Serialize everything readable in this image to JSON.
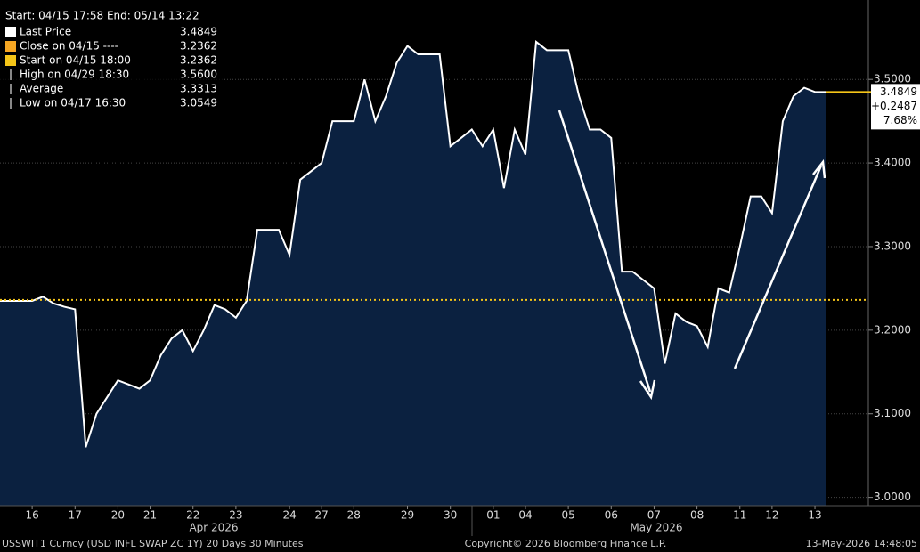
{
  "chart_data": {
    "type": "area",
    "header": "Start: 04/15 17:58 End: 05/14 13:22",
    "legend": [
      {
        "label": "Last Price",
        "value": "3.4849",
        "color": "#ffffff"
      },
      {
        "label": "Close on 04/15 ----",
        "value": "3.2362",
        "color": "#f5a623"
      },
      {
        "label": "Start on 04/15 18:00",
        "value": "3.2362",
        "color": "#f5c518"
      },
      {
        "label": "High on 04/29 18:30",
        "value": "3.5600",
        "color": "#888888"
      },
      {
        "label": "Average",
        "value": "3.3313",
        "color": "#888888"
      },
      {
        "label": "Low on 04/17 16:30",
        "value": "3.0549",
        "color": "#888888"
      }
    ],
    "categories": [
      null,
      null,
      null,
      "16",
      null,
      null,
      null,
      "17",
      null,
      null,
      null,
      "20",
      null,
      null,
      "21",
      null,
      null,
      null,
      "22",
      null,
      null,
      null,
      "23",
      null,
      null,
      null,
      null,
      "24",
      null,
      null,
      "27",
      null,
      null,
      "28",
      null,
      null,
      null,
      null,
      "29",
      null,
      null,
      null,
      "30",
      null,
      null,
      null,
      "01",
      null,
      null,
      "04",
      null,
      null,
      null,
      "05",
      null,
      null,
      null,
      "06",
      null,
      null,
      null,
      "07",
      null,
      null,
      null,
      "08",
      null,
      null,
      null,
      "11",
      null,
      null,
      "12",
      null,
      null,
      null,
      "13",
      null,
      null,
      null,
      null,
      null
    ],
    "series": [
      {
        "name": "Last Price",
        "color": "#ffffff",
        "fill": "#0b2140",
        "values": [
          3.235,
          3.235,
          3.235,
          3.235,
          3.24,
          3.232,
          3.228,
          3.225,
          3.06,
          3.1,
          3.12,
          3.14,
          3.135,
          3.13,
          3.14,
          3.17,
          3.19,
          3.2,
          3.175,
          3.2,
          3.23,
          3.225,
          3.215,
          3.235,
          3.32,
          3.32,
          3.32,
          3.29,
          3.38,
          3.39,
          3.4,
          3.45,
          3.45,
          3.45,
          3.5,
          3.45,
          3.48,
          3.52,
          3.54,
          3.53,
          3.53,
          3.53,
          3.42,
          3.43,
          3.44,
          3.42,
          3.44,
          3.37,
          3.44,
          3.41,
          3.545,
          3.535,
          3.535,
          3.535,
          3.48,
          3.44,
          3.44,
          3.43,
          3.27,
          3.27,
          3.26,
          3.25,
          3.16,
          3.22,
          3.21,
          3.205,
          3.18,
          3.25,
          3.245,
          3.3,
          3.36,
          3.36,
          3.34,
          3.45,
          3.48,
          3.49,
          3.485,
          3.4849,
          null,
          null,
          null,
          null
        ]
      }
    ],
    "reference_line": {
      "value": 3.2362,
      "color": "#f5c518"
    },
    "last_labels": [
      "3.4849",
      "+0.2487",
      "7.68%"
    ],
    "last_value": 3.4849,
    "ylim": [
      2.99,
      3.595
    ],
    "yticks": [
      {
        "value": 3.0,
        "label": "3.0000"
      },
      {
        "value": 3.1,
        "label": "3.1000"
      },
      {
        "value": 3.2,
        "label": "3.2000"
      },
      {
        "value": 3.3,
        "label": "3.3000"
      },
      {
        "value": 3.4,
        "label": "3.4000"
      },
      {
        "value": 3.5,
        "label": "3.5000"
      }
    ],
    "grid": true,
    "months": [
      "Apr 2026",
      "May 2026"
    ],
    "footer": {
      "left": "USSWIT1 Curncy (USD INFL SWAP ZC 1Y) 20 Days 30 Minutes",
      "center": "Copyright© 2026 Bloomberg Finance L.P.",
      "right": "13-May-2026 14:48:05"
    }
  }
}
